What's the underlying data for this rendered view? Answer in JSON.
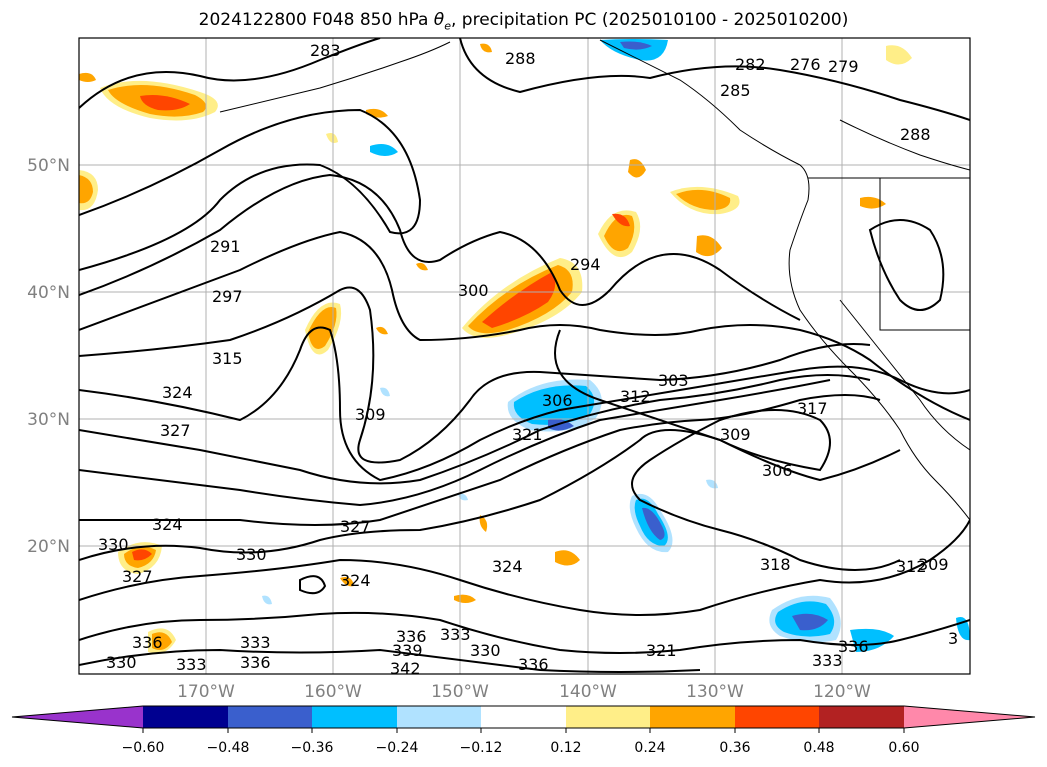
{
  "title": {
    "prefix": "2024122800 F048 850 hPa ",
    "theta_symbol": "θ",
    "theta_subscript": "e",
    "suffix": ", precipitation PC (2025010100 - 2025010200)"
  },
  "map": {
    "lat_ticks": [
      "50°N",
      "40°N",
      "30°N",
      "20°N"
    ],
    "lon_ticks": [
      "170°W",
      "160°W",
      "150°W",
      "140°W",
      "130°W",
      "120°W"
    ],
    "contour_labels": [
      "283",
      "288",
      "282",
      "276",
      "279",
      "285",
      "288",
      "291",
      "300",
      "294",
      "297",
      "315",
      "324",
      "327",
      "309",
      "306",
      "312",
      "303",
      "321",
      "309",
      "317",
      "306",
      "324",
      "330",
      "327",
      "330",
      "327",
      "324",
      "324",
      "318",
      "312",
      "309",
      "336",
      "333",
      "333",
      "336",
      "336",
      "339",
      "333",
      "330",
      "342",
      "336",
      "321",
      "330",
      "336",
      "333",
      "3"
    ]
  },
  "colorbar": {
    "colors": [
      "#9933cc",
      "#000090",
      "#3a5fcd",
      "#00bfff",
      "#b0e2ff",
      "#ffffff",
      "#ffee88",
      "#ffa500",
      "#ff4500",
      "#b22222",
      "#ff88aa"
    ],
    "ticks": [
      "−0.60",
      "−0.48",
      "−0.36",
      "−0.24",
      "−0.12",
      "0.12",
      "0.24",
      "0.36",
      "0.48",
      "0.60"
    ]
  }
}
